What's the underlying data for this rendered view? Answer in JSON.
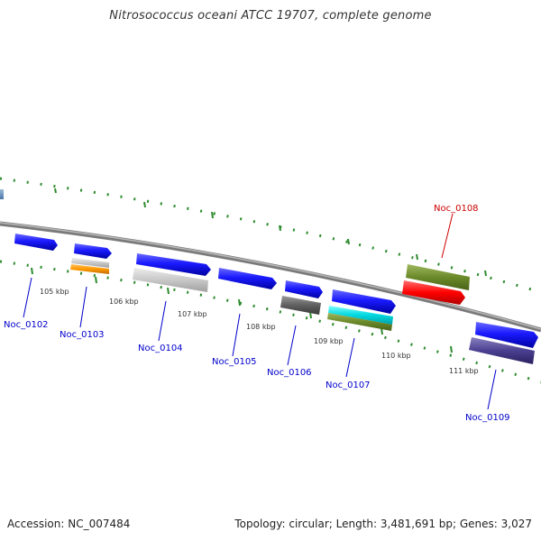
{
  "title": "Nitrosococcus oceani ATCC 19707, complete genome",
  "footer": {
    "accession": "Accession: NC_007484",
    "summary": "Topology: circular; Length: 3,481,691 bp; Genes: 3,027"
  },
  "scale_labels": [
    "105 kbp",
    "106 kbp",
    "107 kbp",
    "108 kbp",
    "109 kbp",
    "110 kbp",
    "111 kbp"
  ],
  "gene_labels": [
    {
      "text": "Noc_0102",
      "color": "#0000cc"
    },
    {
      "text": "Noc_0103",
      "color": "#0000cc"
    },
    {
      "text": "Noc_0104",
      "color": "#0000cc"
    },
    {
      "text": "Noc_0105",
      "color": "#0000cc"
    },
    {
      "text": "Noc_0106",
      "color": "#0000cc"
    },
    {
      "text": "Noc_0107",
      "color": "#0000cc"
    },
    {
      "text": "Noc_0108",
      "color": "#cc0000"
    },
    {
      "text": "Noc_0109",
      "color": "#0000cc"
    }
  ],
  "colors": {
    "backbone": "#888888",
    "tick": "#2e8b2e",
    "cds": "#1010ee",
    "label_blue": "#0000cc",
    "label_red": "#cc0000"
  }
}
